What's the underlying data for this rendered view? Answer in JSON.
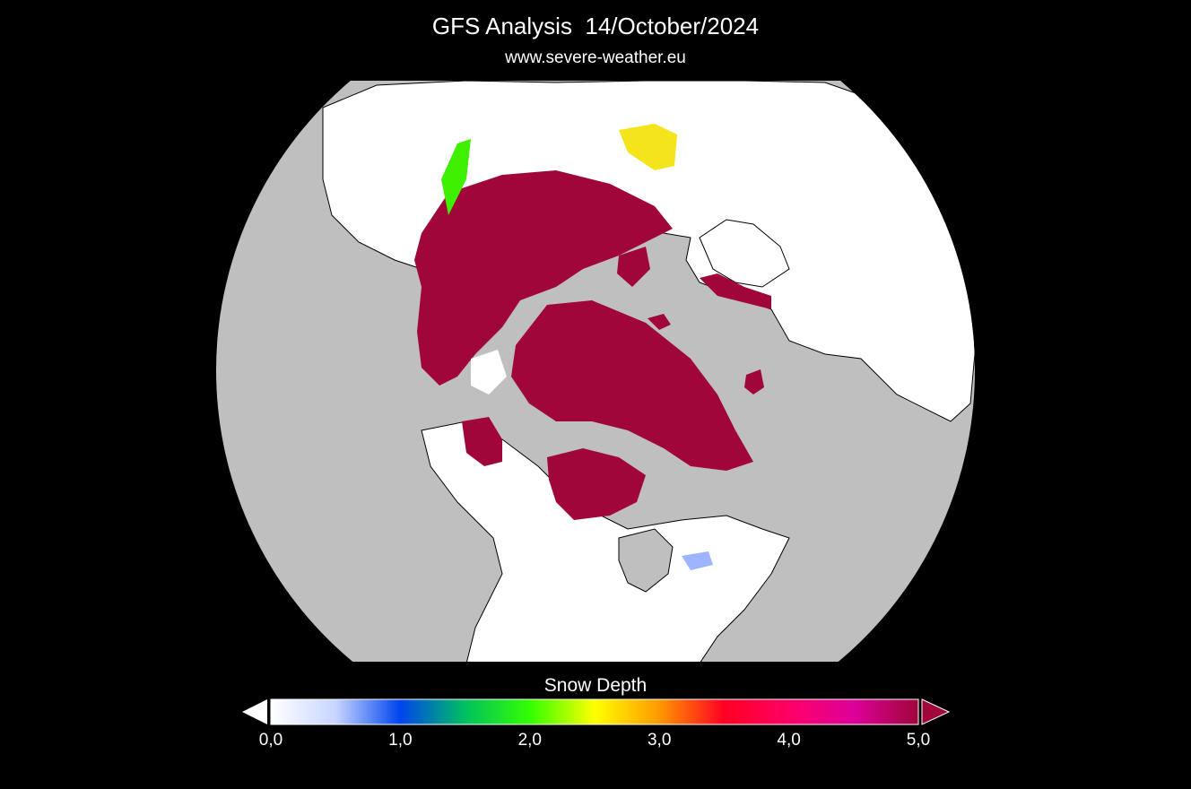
{
  "header": {
    "title": "GFS Analysis  14/October/2024",
    "subtitle": "www.severe-weather.eu"
  },
  "colors": {
    "background": "#000000",
    "ocean": "#bfbfbf",
    "land": "#ffffff",
    "deep_snow": "#a0063a",
    "outline": "#000000"
  },
  "legend": {
    "title": "Snow Depth",
    "ticks": [
      "0,0",
      "1,0",
      "2,0",
      "3,0",
      "4,0",
      "5,0"
    ],
    "min": 0,
    "max": 5,
    "color_stops": [
      {
        "value": 0.0,
        "color": "#ffffff"
      },
      {
        "value": 0.5,
        "color": "#c8d6ff"
      },
      {
        "value": 1.0,
        "color": "#0044ee"
      },
      {
        "value": 1.5,
        "color": "#00c060"
      },
      {
        "value": 2.0,
        "color": "#33ff00"
      },
      {
        "value": 2.5,
        "color": "#ffff00"
      },
      {
        "value": 3.0,
        "color": "#ff9900"
      },
      {
        "value": 3.5,
        "color": "#ff0022"
      },
      {
        "value": 4.0,
        "color": "#ff0066"
      },
      {
        "value": 4.5,
        "color": "#dd0099"
      },
      {
        "value": 5.0,
        "color": "#a0063a"
      }
    ]
  }
}
